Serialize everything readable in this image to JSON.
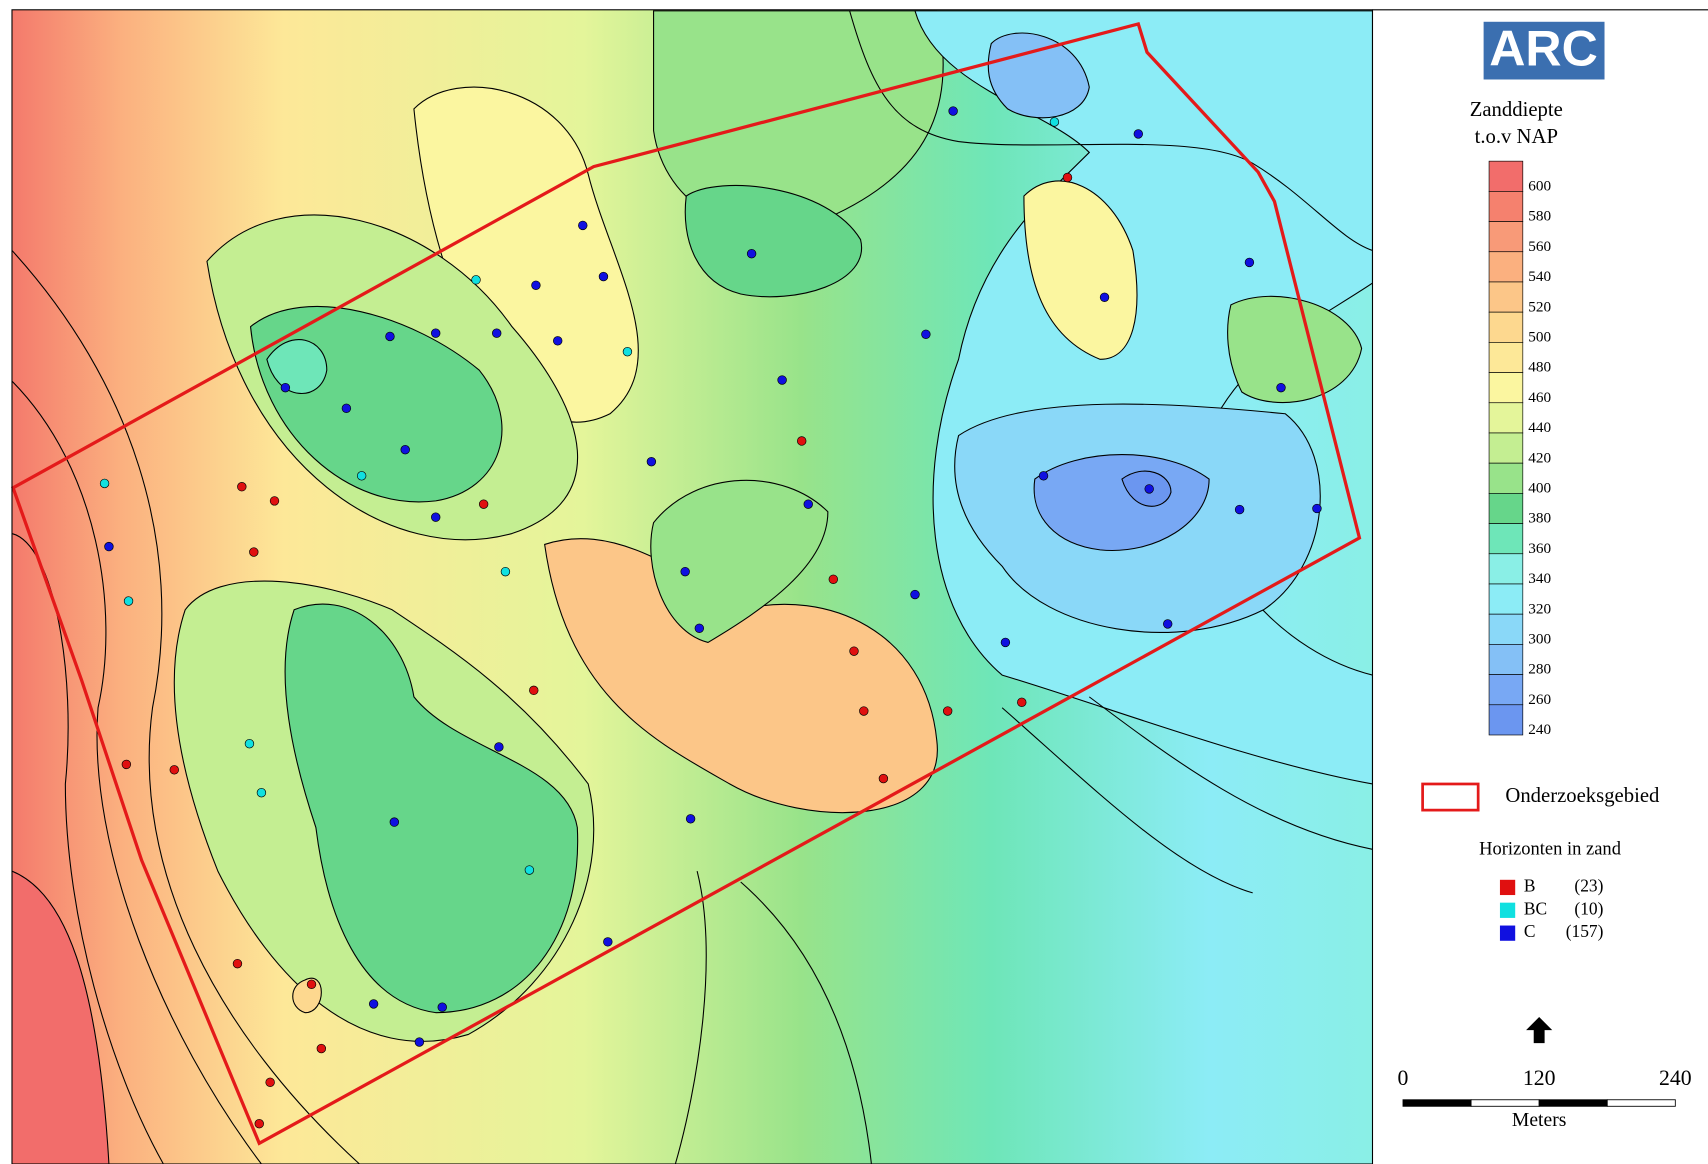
{
  "logo": "ARC",
  "legend": {
    "title": [
      "Zanddiepte",
      "t.o.v NAP"
    ],
    "scale": [
      {
        "value": 600,
        "color": "#f26d6b"
      },
      {
        "value": 580,
        "color": "#f5816e"
      },
      {
        "value": 560,
        "color": "#f89a78"
      },
      {
        "value": 540,
        "color": "#fbb07f"
      },
      {
        "value": 520,
        "color": "#fcc688"
      },
      {
        "value": 500,
        "color": "#fdd88f"
      },
      {
        "value": 480,
        "color": "#fde898"
      },
      {
        "value": 460,
        "color": "#fbf6a0"
      },
      {
        "value": 440,
        "color": "#e4f59a"
      },
      {
        "value": 420,
        "color": "#c4ee92"
      },
      {
        "value": 400,
        "color": "#98e38a"
      },
      {
        "value": 380,
        "color": "#66d68a"
      },
      {
        "value": 360,
        "color": "#6ee6b8"
      },
      {
        "value": 340,
        "color": "#8aefe6"
      },
      {
        "value": 320,
        "color": "#8cecf6"
      },
      {
        "value": 300,
        "color": "#8ad8f8"
      },
      {
        "value": 280,
        "color": "#84c0f6"
      },
      {
        "value": 260,
        "color": "#78a8f4"
      },
      {
        "value": 240,
        "color": "#6b96f0"
      }
    ],
    "area": "Onderzoeksgebied",
    "horizons_title": "Horizonten in zand",
    "horizons": [
      {
        "name": "B",
        "count": "(23)",
        "color": "#e01010"
      },
      {
        "name": "BC",
        "count": "(10)",
        "color": "#10e0e0"
      },
      {
        "name": "C",
        "count": "(157)",
        "color": "#1010e0"
      }
    ]
  },
  "scale_bar": {
    "ticks": [
      0,
      120,
      240
    ],
    "unit": "Meters"
  }
}
